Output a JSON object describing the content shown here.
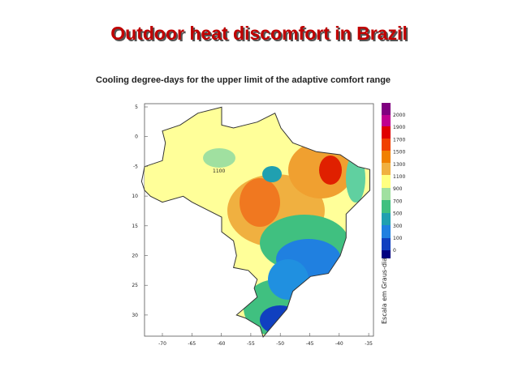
{
  "header": {
    "title": "Outdoor heat discomfort in Brazil",
    "subtitle": "Cooling degree-days for the upper limit of the adaptive comfort range"
  },
  "map": {
    "lat_labels": [
      "5",
      "0",
      "-5",
      "10",
      "15",
      "20",
      "25",
      "30"
    ],
    "lon_labels": [
      "-70",
      "-65",
      "-60",
      "-55",
      "-50",
      "-45",
      "-40",
      "-35"
    ],
    "contour_label": "1100",
    "legend": {
      "title": "Escala em Graus-dia",
      "labels": [
        "2000",
        "1900",
        "1700",
        "1500",
        "1300",
        "1100",
        "900",
        "700",
        "500",
        "300",
        "100",
        "0"
      ]
    }
  }
}
